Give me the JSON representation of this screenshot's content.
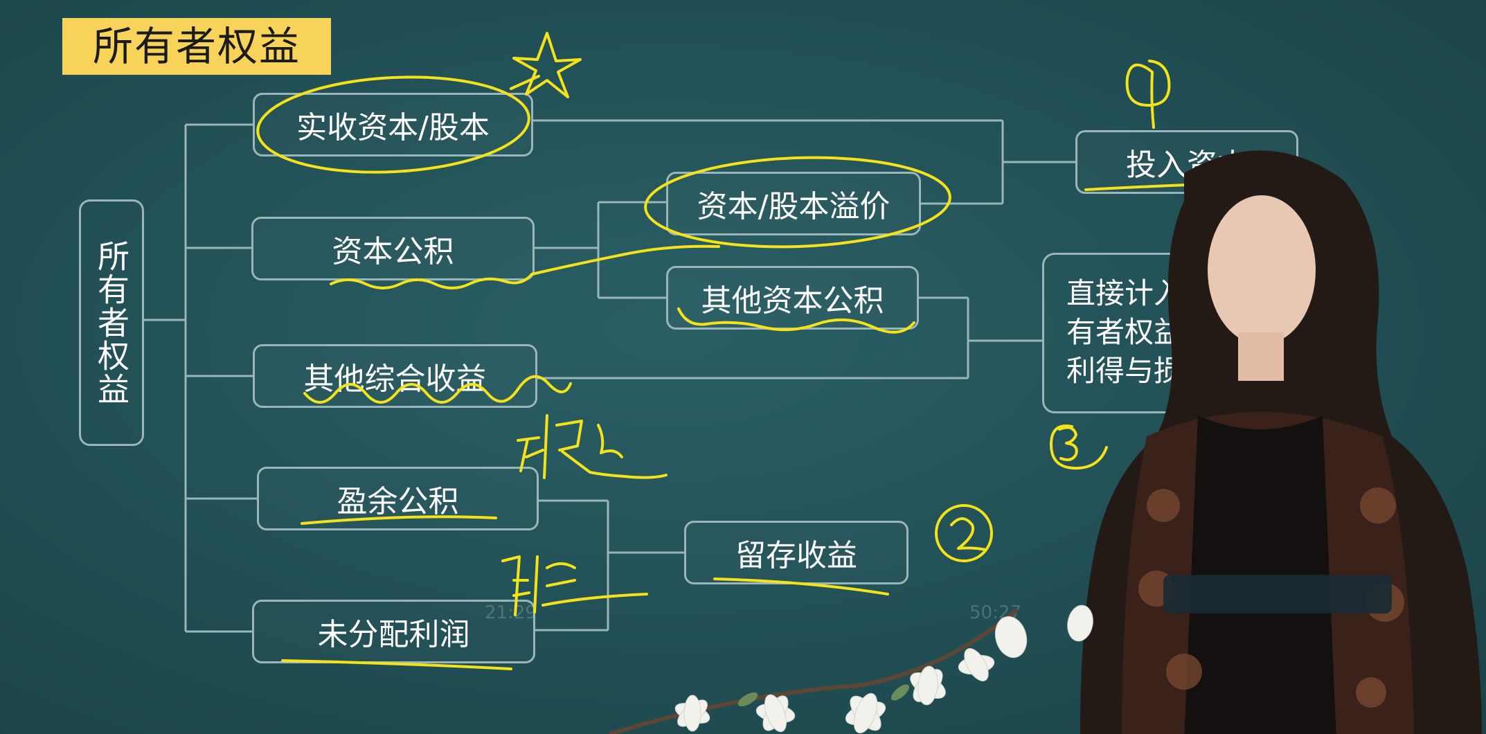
{
  "title": "所有者权益",
  "root_label": "所有者权益",
  "nodes": {
    "paid_in_capital": "实收资本/股本",
    "capital_reserve": "资本公积",
    "other_comprehensive_income": "其他综合收益",
    "surplus_reserve": "盈余公积",
    "undistributed_profit": "未分配利润",
    "capital_premium": "资本/股本溢价",
    "other_capital_reserve": "其他资本公积",
    "retained_earnings": "留存收益",
    "capital_invested": "投入资本",
    "direct_gains_lines": [
      "直接计入所",
      "有者权益的",
      "利得与损失"
    ]
  },
  "annotations": {
    "circle1": "①",
    "circle2": "②",
    "circle3": "③",
    "note_statutory": "法定",
    "note_voluntary": "任意"
  },
  "player": {
    "elapsed": "21:29",
    "total": "50:27"
  },
  "colors": {
    "board": "#214f55",
    "title_bg": "#f7d35a",
    "node_border": "#9ab6b8",
    "ink": "#f4e21a"
  }
}
